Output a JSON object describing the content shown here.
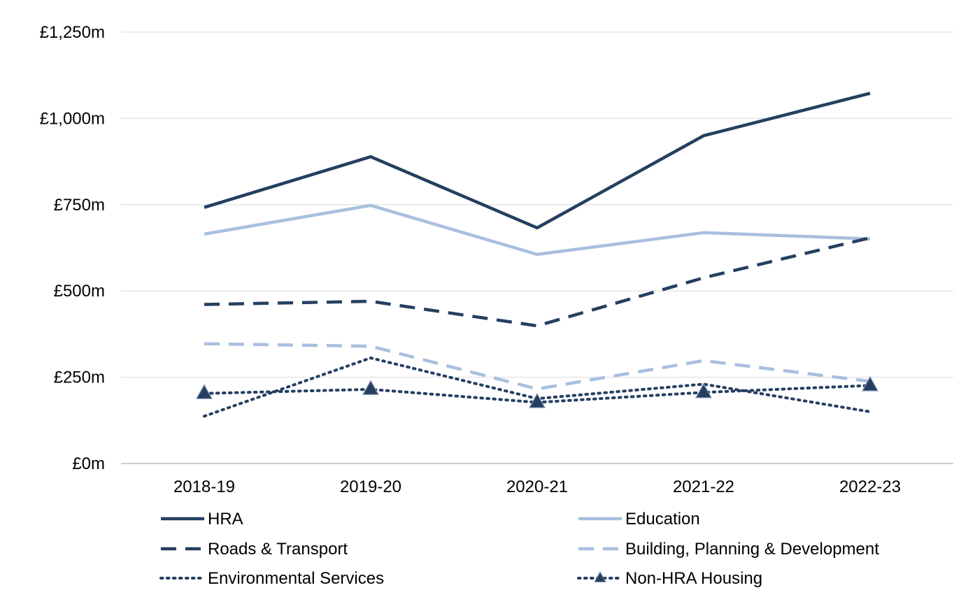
{
  "chart_data": {
    "type": "line",
    "title": "",
    "xlabel": "",
    "ylabel": "",
    "categories": [
      "2018-19",
      "2019-20",
      "2020-21",
      "2021-22",
      "2022-23"
    ],
    "ylim": [
      0,
      1250
    ],
    "yticks": [
      0,
      250,
      500,
      750,
      1000,
      1250
    ],
    "ytick_labels": [
      "£0m",
      "£250m",
      "£500m",
      "£750m",
      "£1,000m",
      "£1,250m"
    ],
    "grid": true,
    "legend_position": "bottom",
    "series": [
      {
        "name": "HRA",
        "values": [
          742,
          889,
          683,
          950,
          1073
        ],
        "color": "#243F60",
        "style": "solid",
        "marker": "none"
      },
      {
        "name": "Education",
        "values": [
          665,
          748,
          606,
          669,
          651
        ],
        "color": "#A9BFDF",
        "style": "solid",
        "marker": "none"
      },
      {
        "name": "Roads & Transport",
        "values": [
          461,
          470,
          399,
          538,
          654
        ],
        "color": "#243F60",
        "style": "dashed",
        "marker": "none"
      },
      {
        "name": "Building, Planning & Development",
        "values": [
          347,
          340,
          216,
          298,
          238
        ],
        "color": "#A9BFDF",
        "style": "dashed",
        "marker": "none"
      },
      {
        "name": "Environmental Services",
        "values": [
          137,
          306,
          188,
          230,
          150
        ],
        "color": "#243F60",
        "style": "dotted",
        "marker": "none"
      },
      {
        "name": "Non-HRA Housing",
        "values": [
          203,
          215,
          177,
          206,
          226
        ],
        "color": "#243F60",
        "style": "dotted",
        "marker": "triangle"
      }
    ]
  }
}
